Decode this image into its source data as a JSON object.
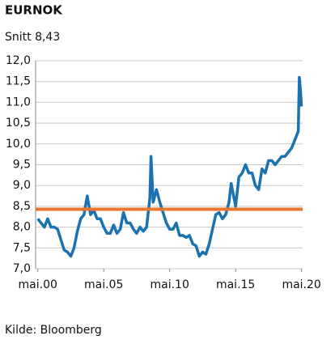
{
  "chart_data": {
    "type": "line",
    "title": "EURNOK",
    "subtitle": "Snitt 8,43",
    "source": "Kilde: Bloomberg",
    "x": [
      "2000-05",
      "2000-08",
      "2000-11",
      "2001-02",
      "2001-05",
      "2001-08",
      "2001-11",
      "2002-02",
      "2002-05",
      "2002-08",
      "2002-11",
      "2003-02",
      "2003-05",
      "2003-08",
      "2003-11",
      "2004-02",
      "2004-05",
      "2004-08",
      "2004-11",
      "2005-02",
      "2005-05",
      "2005-08",
      "2005-11",
      "2006-02",
      "2006-05",
      "2006-08",
      "2006-11",
      "2007-02",
      "2007-05",
      "2007-08",
      "2007-11",
      "2008-02",
      "2008-05",
      "2008-08",
      "2008-11",
      "2008-12",
      "2009-02",
      "2009-05",
      "2009-08",
      "2009-11",
      "2010-02",
      "2010-05",
      "2010-08",
      "2010-11",
      "2011-02",
      "2011-05",
      "2011-08",
      "2011-11",
      "2012-02",
      "2012-05",
      "2012-08",
      "2012-11",
      "2013-02",
      "2013-05",
      "2013-08",
      "2013-11",
      "2014-02",
      "2014-05",
      "2014-08",
      "2014-11",
      "2015-01",
      "2015-05",
      "2015-08",
      "2015-11",
      "2016-02",
      "2016-05",
      "2016-08",
      "2016-11",
      "2017-02",
      "2017-05",
      "2017-08",
      "2017-11",
      "2018-02",
      "2018-05",
      "2018-08",
      "2018-11",
      "2019-02",
      "2019-05",
      "2019-08",
      "2019-11",
      "2020-02",
      "2020-03",
      "2020-04",
      "2020-05"
    ],
    "series": [
      {
        "name": "EURNOK",
        "color": "#1b72b0",
        "values": [
          8.2,
          8.1,
          8.0,
          8.2,
          8.0,
          8.0,
          7.95,
          7.7,
          7.45,
          7.4,
          7.3,
          7.5,
          7.9,
          8.2,
          8.3,
          8.75,
          8.3,
          8.4,
          8.2,
          8.2,
          8.0,
          7.85,
          7.85,
          8.05,
          7.85,
          7.95,
          8.35,
          8.1,
          8.1,
          7.95,
          7.85,
          8.0,
          7.9,
          8.0,
          8.7,
          9.7,
          8.6,
          8.9,
          8.6,
          8.35,
          8.1,
          7.95,
          7.95,
          8.1,
          7.8,
          7.8,
          7.75,
          7.8,
          7.6,
          7.55,
          7.3,
          7.4,
          7.35,
          7.6,
          7.95,
          8.3,
          8.35,
          8.2,
          8.3,
          8.6,
          9.05,
          8.5,
          9.2,
          9.3,
          9.5,
          9.3,
          9.3,
          9.0,
          8.9,
          9.4,
          9.3,
          9.6,
          9.6,
          9.5,
          9.6,
          9.7,
          9.7,
          9.8,
          9.9,
          10.1,
          10.3,
          11.6,
          11.3,
          10.9
        ]
      }
    ],
    "average": {
      "value": 8.43,
      "color": "#e8762c"
    },
    "xlim": [
      "2000-03",
      "2020-06"
    ],
    "xticks": [
      {
        "value": "2000-05",
        "label": "mai.00"
      },
      {
        "value": "2005-05",
        "label": "mai.05"
      },
      {
        "value": "2010-05",
        "label": "mai.10"
      },
      {
        "value": "2015-05",
        "label": "mai.15"
      },
      {
        "value": "2020-05",
        "label": "mai.20"
      }
    ],
    "ylim": [
      7,
      12
    ],
    "yticks": [
      {
        "value": 7,
        "label": "7,0"
      },
      {
        "value": 7.5,
        "label": "7,5"
      },
      {
        "value": 8,
        "label": "8,0"
      },
      {
        "value": 8.5,
        "label": "8,5"
      },
      {
        "value": 9,
        "label": "9,0"
      },
      {
        "value": 9.5,
        "label": "9,5"
      },
      {
        "value": 10,
        "label": "10,0"
      },
      {
        "value": 10.5,
        "label": "10,5"
      },
      {
        "value": 11,
        "label": "11,0"
      },
      {
        "value": 11.5,
        "label": "11,5"
      },
      {
        "value": 12,
        "label": "12,0"
      }
    ],
    "grid": true
  }
}
